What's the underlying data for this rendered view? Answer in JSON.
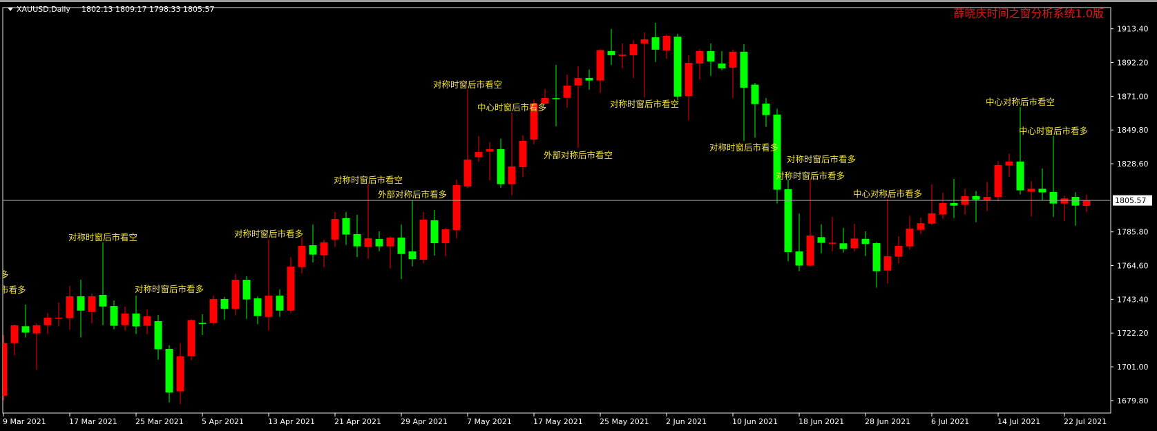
{
  "header": {
    "menu_icon": "triangle-down-icon",
    "symbol": "XAUUSD,Daily",
    "ohlc_text": "1802.13 1809.17 1798.33 1805.57"
  },
  "title": "薛晓庆时间之窗分析系统1.0版",
  "colors": {
    "background": "#000000",
    "bull": "#ff0000",
    "bear": "#00ff00",
    "annotation": "#f0e040",
    "title": "#e01818",
    "price_line": "#a0a0a8"
  },
  "annotations": [
    {
      "text": "多",
      "candle": 0
    },
    {
      "text": "市看多",
      "candle": 1
    },
    {
      "text": "对称时窗后市看空",
      "candle": 9
    },
    {
      "text": "对称时窗后市看多",
      "candle": 15
    },
    {
      "text": "对称时窗后市看多",
      "candle": 24
    },
    {
      "text": "对称时窗后市看空",
      "candle": 33
    },
    {
      "text": "外部对称后市看多",
      "candle": 37
    },
    {
      "text": "对称时窗后市看空",
      "candle": 42
    },
    {
      "text": "中心时窗后市看多",
      "candle": 46
    },
    {
      "text": "外部对称后市看空",
      "candle": 52
    },
    {
      "text": "对称时窗后市看空",
      "candle": 58
    },
    {
      "text": "对称时窗后市看多",
      "candle": 67
    },
    {
      "text": "对称时窗后市看多",
      "candle": 74
    },
    {
      "text": "对称时窗后市看多",
      "candle": 73
    },
    {
      "text": "中心对称后市看多",
      "candle": 80
    },
    {
      "text": "中心对称后市看空",
      "candle": 92
    },
    {
      "text": "中心时窗后市看多",
      "candle": 95
    }
  ],
  "chart_data": {
    "type": "candlestick",
    "symbol": "XAUUSD",
    "timeframe": "Daily",
    "bull_color": "#ff0000",
    "bear_color": "#00ff00",
    "current_price": "1805.57",
    "ylim": [
      1679.8,
      1913.4
    ],
    "y_ticks": [
      "1913.40",
      "1892.20",
      "1871.00",
      "1849.80",
      "1828.60",
      "1785.80",
      "1764.60",
      "1743.40",
      "1722.20",
      "1701.00",
      "1679.80"
    ],
    "x_ticks": [
      {
        "label": "9 Mar 2021",
        "candle": 0
      },
      {
        "label": "17 Mar 2021",
        "candle": 6
      },
      {
        "label": "25 Mar 2021",
        "candle": 12
      },
      {
        "label": "5 Apr 2021",
        "candle": 18
      },
      {
        "label": "13 Apr 2021",
        "candle": 24
      },
      {
        "label": "21 Apr 2021",
        "candle": 30
      },
      {
        "label": "29 Apr 2021",
        "candle": 36
      },
      {
        "label": "7 May 2021",
        "candle": 42
      },
      {
        "label": "17 May 2021",
        "candle": 48
      },
      {
        "label": "25 May 2021",
        "candle": 54
      },
      {
        "label": "2 Jun 2021",
        "candle": 60
      },
      {
        "label": "10 Jun 2021",
        "candle": 66
      },
      {
        "label": "18 Jun 2021",
        "candle": 72
      },
      {
        "label": "28 Jun 2021",
        "candle": 78
      },
      {
        "label": "6 Jul 2021",
        "candle": 84
      },
      {
        "label": "14 Jul 2021",
        "candle": 90
      },
      {
        "label": "22 Jul 2021",
        "candle": 96
      }
    ],
    "ohlc_columns": [
      "open",
      "high",
      "low",
      "close"
    ],
    "ohlc": [
      [
        1682.9,
        1721.0,
        1680.0,
        1715.9
      ],
      [
        1715.9,
        1727.5,
        1708.3,
        1727.1
      ],
      [
        1726.5,
        1740.1,
        1719.4,
        1722.5
      ],
      [
        1722.0,
        1728.2,
        1699.0,
        1727.1
      ],
      [
        1727.2,
        1734.7,
        1721.7,
        1731.9
      ],
      [
        1731.7,
        1741.5,
        1726.4,
        1731.9
      ],
      [
        1731.6,
        1751.8,
        1724.3,
        1745.3
      ],
      [
        1745.3,
        1755.7,
        1719.4,
        1736.3
      ],
      [
        1735.5,
        1747.0,
        1728.5,
        1745.3
      ],
      [
        1746.2,
        1779.2,
        1727.2,
        1738.9
      ],
      [
        1739.2,
        1742.7,
        1724.6,
        1726.8
      ],
      [
        1727.2,
        1738.8,
        1723.8,
        1734.5
      ],
      [
        1734.5,
        1745.7,
        1721.7,
        1726.4
      ],
      [
        1726.8,
        1737.1,
        1721.6,
        1732.7
      ],
      [
        1729.7,
        1733.6,
        1705.5,
        1712.0
      ],
      [
        1712.3,
        1714.5,
        1678.6,
        1684.8
      ],
      [
        1685.6,
        1715.9,
        1677.6,
        1707.6
      ],
      [
        1707.6,
        1731.1,
        1705.1,
        1730.4
      ],
      [
        1728.6,
        1734.0,
        1721.0,
        1728.4
      ],
      [
        1728.5,
        1745.6,
        1727.2,
        1743.6
      ],
      [
        1743.6,
        1744.9,
        1730.7,
        1737.5
      ],
      [
        1737.5,
        1759.3,
        1733.3,
        1755.7
      ],
      [
        1755.7,
        1757.9,
        1731.1,
        1743.3
      ],
      [
        1744.0,
        1745.2,
        1727.8,
        1732.9
      ],
      [
        1732.4,
        1781.0,
        1723.9,
        1745.7
      ],
      [
        1745.7,
        1749.7,
        1732.4,
        1736.3
      ],
      [
        1736.3,
        1769.9,
        1734.8,
        1764.0
      ],
      [
        1763.7,
        1782.5,
        1759.8,
        1777.0
      ],
      [
        1777.4,
        1790.4,
        1766.6,
        1771.5
      ],
      [
        1771.1,
        1781.0,
        1763.7,
        1779.2
      ],
      [
        1781.0,
        1798.3,
        1776.3,
        1793.9
      ],
      [
        1794.4,
        1798.3,
        1777.6,
        1784.1
      ],
      [
        1784.4,
        1796.5,
        1770.0,
        1776.7
      ],
      [
        1776.3,
        1815.8,
        1768.9,
        1781.8
      ],
      [
        1781.3,
        1786.1,
        1773.7,
        1776.7
      ],
      [
        1776.7,
        1782.9,
        1762.8,
        1782.2
      ],
      [
        1782.2,
        1790.4,
        1756.2,
        1771.9
      ],
      [
        1773.5,
        1805.6,
        1764.1,
        1768.7
      ],
      [
        1768.3,
        1798.3,
        1766.1,
        1793.5
      ],
      [
        1793.1,
        1799.6,
        1770.9,
        1778.7
      ],
      [
        1778.7,
        1788.3,
        1770.6,
        1787.4
      ],
      [
        1787.0,
        1818.7,
        1781.8,
        1815.2
      ],
      [
        1814.3,
        1875.4,
        1813.2,
        1831.2
      ],
      [
        1832.7,
        1846.0,
        1829.9,
        1836.0
      ],
      [
        1836.2,
        1842.1,
        1818.2,
        1837.8
      ],
      [
        1837.8,
        1844.3,
        1813.5,
        1815.8
      ],
      [
        1815.8,
        1860.6,
        1808.8,
        1826.9
      ],
      [
        1826.5,
        1846.4,
        1820.1,
        1843.0
      ],
      [
        1843.8,
        1869.0,
        1840.9,
        1866.4
      ],
      [
        1866.4,
        1875.5,
        1866.0,
        1869.9
      ],
      [
        1869.8,
        1890.7,
        1852.2,
        1869.7
      ],
      [
        1870.0,
        1884.6,
        1863.8,
        1877.7
      ],
      [
        1877.8,
        1889.9,
        1838.6,
        1882.5
      ],
      [
        1882.5,
        1887.7,
        1875.2,
        1880.9
      ],
      [
        1880.9,
        1900.6,
        1873.1,
        1900.0
      ],
      [
        1899.4,
        1913.3,
        1890.7,
        1896.8
      ],
      [
        1896.4,
        1904.2,
        1888.6,
        1897.2
      ],
      [
        1896.8,
        1906.3,
        1882.5,
        1903.7
      ],
      [
        1904.2,
        1911.1,
        1870.3,
        1906.8
      ],
      [
        1908.1,
        1917.2,
        1892.5,
        1900.3
      ],
      [
        1899.8,
        1909.8,
        1894.6,
        1909.0
      ],
      [
        1908.5,
        1910.3,
        1868.6,
        1870.8
      ],
      [
        1871.2,
        1896.8,
        1856.0,
        1892.0
      ],
      [
        1891.6,
        1900.6,
        1881.6,
        1899.4
      ],
      [
        1899.4,
        1904.2,
        1883.8,
        1892.9
      ],
      [
        1891.6,
        1899.4,
        1887.3,
        1888.6
      ],
      [
        1889.0,
        1900.3,
        1869.9,
        1899.0
      ],
      [
        1899.0,
        1903.7,
        1843.0,
        1876.4
      ],
      [
        1878.3,
        1879.4,
        1845.0,
        1866.1
      ],
      [
        1866.4,
        1869.9,
        1851.8,
        1859.2
      ],
      [
        1859.5,
        1863.2,
        1803.6,
        1812.3
      ],
      [
        1812.6,
        1818.7,
        1767.3,
        1773.1
      ],
      [
        1773.5,
        1797.3,
        1761.1,
        1764.6
      ],
      [
        1764.6,
        1818.7,
        1764.1,
        1783.5
      ],
      [
        1782.5,
        1790.5,
        1772.4,
        1778.9
      ],
      [
        1778.9,
        1795.2,
        1773.4,
        1779.0
      ],
      [
        1778.6,
        1788.3,
        1772.8,
        1775.0
      ],
      [
        1775.6,
        1790.9,
        1773.5,
        1781.6
      ],
      [
        1781.4,
        1786.1,
        1770.6,
        1778.2
      ],
      [
        1778.7,
        1779.3,
        1750.7,
        1761.1
      ],
      [
        1761.5,
        1806.4,
        1753.3,
        1770.5
      ],
      [
        1770.2,
        1783.1,
        1765.9,
        1777.0
      ],
      [
        1776.7,
        1795.8,
        1774.6,
        1787.9
      ],
      [
        1787.1,
        1794.8,
        1784.5,
        1791.2
      ],
      [
        1791.0,
        1815.6,
        1790.0,
        1797.4
      ],
      [
        1796.7,
        1810.4,
        1794.1,
        1803.9
      ],
      [
        1803.9,
        1819.1,
        1794.5,
        1802.3
      ],
      [
        1802.8,
        1812.9,
        1796.7,
        1808.3
      ],
      [
        1808.3,
        1811.4,
        1791.9,
        1806.1
      ],
      [
        1805.8,
        1817.2,
        1798.9,
        1807.8
      ],
      [
        1807.8,
        1830.3,
        1804.9,
        1827.8
      ],
      [
        1827.5,
        1834.9,
        1820.4,
        1830.0
      ],
      [
        1830.0,
        1864.3,
        1809.3,
        1811.9
      ],
      [
        1811.0,
        1817.7,
        1795.5,
        1812.9
      ],
      [
        1812.9,
        1825.6,
        1805.4,
        1810.6
      ],
      [
        1810.9,
        1846.2,
        1795.1,
        1803.6
      ],
      [
        1803.6,
        1808.5,
        1792.6,
        1806.8
      ],
      [
        1807.8,
        1810.7,
        1789.7,
        1802.3
      ],
      [
        1802.13,
        1809.17,
        1798.33,
        1805.57
      ]
    ]
  }
}
